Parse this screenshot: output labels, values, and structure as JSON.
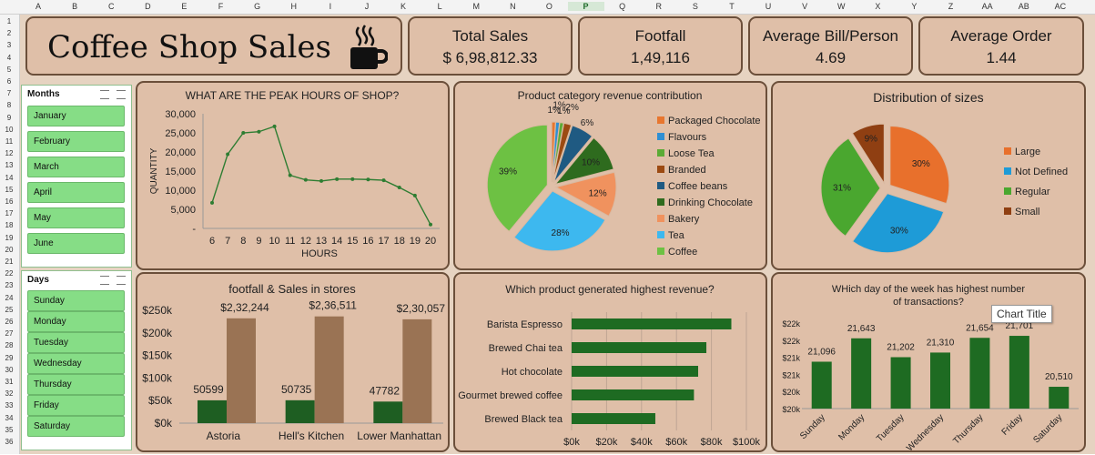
{
  "spreadsheet": {
    "columns": [
      "A",
      "B",
      "C",
      "D",
      "E",
      "F",
      "G",
      "H",
      "I",
      "J",
      "K",
      "L",
      "M",
      "N",
      "O",
      "P",
      "Q",
      "R",
      "S",
      "T",
      "U",
      "V",
      "W",
      "X",
      "Y",
      "Z",
      "AA",
      "AB",
      "AC"
    ],
    "selected_column": "P",
    "rows": [
      "1",
      "2",
      "3",
      "4",
      "5",
      "6",
      "7",
      "8",
      "9",
      "10",
      "11",
      "12",
      "13",
      "14",
      "15",
      "16",
      "17",
      "18",
      "19",
      "20",
      "21",
      "22",
      "23",
      "24",
      "25",
      "26",
      "27",
      "28",
      "29",
      "30",
      "31",
      "32",
      "33",
      "34",
      "35",
      "36"
    ]
  },
  "header": {
    "title": "Coffee Shop Sales",
    "icon": "coffee-cup-icon"
  },
  "kpis": [
    {
      "title": "Total Sales",
      "value": "$ 6,98,812.33"
    },
    {
      "title": "Footfall",
      "value": "1,49,116"
    },
    {
      "title": "Average Bill/Person",
      "value": "4.69"
    },
    {
      "title": "Average Order",
      "value": "1.44"
    }
  ],
  "slicers": {
    "months": {
      "title": "Months",
      "items": [
        "January",
        "February",
        "March",
        "April",
        "May",
        "June"
      ]
    },
    "days": {
      "title": "Days",
      "items": [
        "Sunday",
        "Monday",
        "Tuesday",
        "Wednesday",
        "Thursday",
        "Friday",
        "Saturday"
      ]
    }
  },
  "tooltip": "Chart Title",
  "colors": {
    "dark_green": "#1e6b22",
    "brown": "#9a7354",
    "line_green": "#2e7d32",
    "card_border": "#6b4f3a"
  },
  "chart_data": [
    {
      "id": "peak-hours",
      "type": "line",
      "title": "WHAT ARE THE PEAK HOURS OF SHOP?",
      "xlabel": "HOURS",
      "ylabel": "QUANTITY",
      "x": [
        6,
        7,
        8,
        9,
        10,
        11,
        12,
        13,
        14,
        15,
        16,
        17,
        18,
        19,
        20
      ],
      "values": [
        6700,
        19400,
        25000,
        25300,
        26700,
        13900,
        12700,
        12400,
        12900,
        12900,
        12800,
        12600,
        10700,
        8600,
        1000
      ],
      "ylim": [
        0,
        30000
      ],
      "yticks": [
        0,
        5000,
        10000,
        15000,
        20000,
        25000,
        30000
      ],
      "ytick_labels": [
        "-",
        "5,000",
        "10,000",
        "15,000",
        "20,000",
        "25,000",
        "30,000"
      ],
      "grid": false
    },
    {
      "id": "category-revenue",
      "type": "pie",
      "title": "Product category revenue contribution",
      "legend_position": "right",
      "labels": [
        "Packaged Chocolate",
        "Flavours",
        "Loose Tea",
        "Branded",
        "Coffee beans",
        "Drinking Chocolate",
        "Bakery",
        "Tea",
        "Coffee"
      ],
      "values": [
        1,
        1,
        1,
        2,
        6,
        10,
        12,
        28,
        39
      ],
      "value_labels": [
        "1%",
        "1%",
        "1%",
        "2%",
        "6%",
        "10%",
        "12%",
        "28%",
        "39%"
      ],
      "colors": [
        "#e8762f",
        "#2f8fd3",
        "#5bab35",
        "#9c4a12",
        "#1f5a82",
        "#2e6b1e",
        "#f0925e",
        "#3db8ef",
        "#6dc143"
      ]
    },
    {
      "id": "size-distribution",
      "type": "pie",
      "title": "Distribution of sizes",
      "legend_position": "right",
      "labels": [
        "Large",
        "Not Defined",
        "Regular",
        "Small"
      ],
      "values": [
        30,
        30,
        31,
        9
      ],
      "value_labels": [
        "30%",
        "30%",
        "31%",
        "9%"
      ],
      "colors": [
        "#e8702c",
        "#1e9bd7",
        "#4aa72f",
        "#8f3f12"
      ]
    },
    {
      "id": "store-footfall-sales",
      "type": "bar",
      "title": "footfall & Sales in stores",
      "categories": [
        "Astoria",
        "Hell's Kitchen",
        "Lower Manhattan"
      ],
      "series": [
        {
          "values": [
            50599,
            50735,
            47782
          ],
          "labels": [
            "50599",
            "50735",
            "47782"
          ],
          "color": "#1e5e22"
        },
        {
          "values": [
            232244,
            236511,
            230057
          ],
          "labels": [
            "$2,32,244",
            "$2,36,511",
            "$2,30,057"
          ],
          "color": "#9a7354"
        }
      ],
      "ylim": [
        0,
        250000
      ],
      "yticks": [
        0,
        50000,
        100000,
        150000,
        200000,
        250000
      ],
      "ytick_labels": [
        "$0k",
        "$50k",
        "$100k",
        "$150k",
        "$200k",
        "$250k"
      ]
    },
    {
      "id": "product-revenue",
      "type": "bar",
      "orientation": "horizontal",
      "title": "Which product generated highest revenue?",
      "categories": [
        "Barista Espresso",
        "Brewed Chai tea",
        "Hot chocolate",
        "Gourmet brewed coffee",
        "Brewed Black tea"
      ],
      "values": [
        91400,
        77100,
        72400,
        70000,
        47900
      ],
      "xlim": [
        0,
        100000
      ],
      "xticks": [
        0,
        20000,
        40000,
        60000,
        80000,
        100000
      ],
      "xtick_labels": [
        "$0k",
        "$20k",
        "$40k",
        "$60k",
        "$80k",
        "$100k"
      ],
      "grid": true
    },
    {
      "id": "weekday-transactions",
      "type": "bar",
      "title": "WHich day of the week has highest number of transactions?",
      "categories": [
        "Sunday",
        "Monday",
        "Tuesday",
        "Wednesday",
        "Thursday",
        "Friday",
        "Saturday"
      ],
      "values": [
        21096,
        21643,
        21202,
        21310,
        21654,
        21701,
        20510
      ],
      "value_labels": [
        "21,096",
        "21,643",
        "21,202",
        "21,310",
        "21,654",
        "21,701",
        "20,510"
      ],
      "ylim": [
        20000,
        22000
      ],
      "yticks": [
        20000,
        20400,
        20800,
        21200,
        21600,
        22000
      ],
      "ytick_labels": [
        "$20k",
        "$20k",
        "$21k",
        "$21k",
        "$22k",
        "$22k"
      ]
    }
  ]
}
